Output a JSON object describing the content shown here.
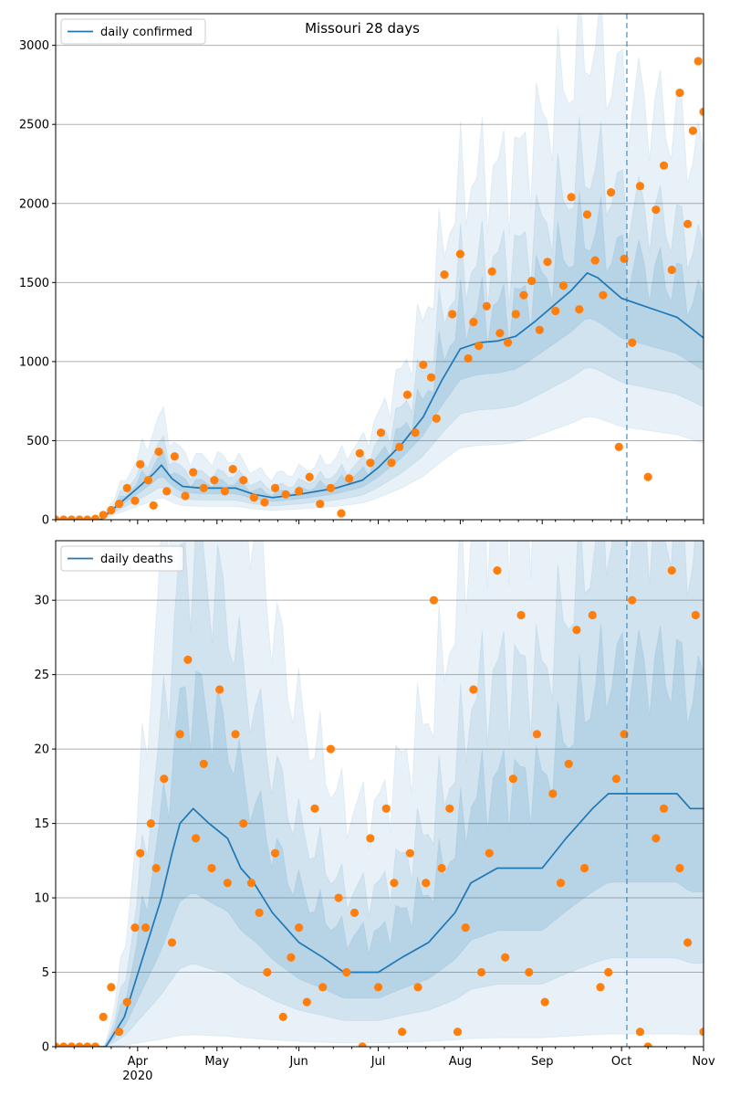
{
  "figure": {
    "title": "Missouri 28 days"
  },
  "chart_data": [
    {
      "type": "line",
      "title": "Missouri 28 days",
      "legend": [
        "daily confirmed"
      ],
      "legend_position": "top-left",
      "x_axis": {
        "range": [
          "2020-03-01",
          "2020-11-01"
        ],
        "tick_labels": [
          "Apr\n2020",
          "May",
          "Jun",
          "Jul",
          "Aug",
          "Sep",
          "Oct",
          "Nov"
        ]
      },
      "ylim": [
        0,
        3200
      ],
      "y_ticks": [
        0,
        500,
        1000,
        1500,
        2000,
        2500,
        3000
      ],
      "grid": "horizontal",
      "vertical_marker_date": "2020-10-03",
      "series": [
        {
          "name": "daily confirmed",
          "kind": "line",
          "color": "#1f77b4",
          "points": [
            [
              "2020-03-01",
              0
            ],
            [
              "2020-03-18",
              0
            ],
            [
              "2020-03-25",
              100
            ],
            [
              "2020-04-01",
              200
            ],
            [
              "2020-04-07",
              290
            ],
            [
              "2020-04-10",
              345
            ],
            [
              "2020-04-14",
              260
            ],
            [
              "2020-04-18",
              210
            ],
            [
              "2020-04-25",
              200
            ],
            [
              "2020-05-01",
              200
            ],
            [
              "2020-05-08",
              200
            ],
            [
              "2020-05-15",
              160
            ],
            [
              "2020-05-22",
              140
            ],
            [
              "2020-06-01",
              160
            ],
            [
              "2020-06-15",
              200
            ],
            [
              "2020-06-25",
              250
            ],
            [
              "2020-07-01",
              330
            ],
            [
              "2020-07-10",
              480
            ],
            [
              "2020-07-18",
              650
            ],
            [
              "2020-07-25",
              880
            ],
            [
              "2020-08-01",
              1080
            ],
            [
              "2020-08-08",
              1120
            ],
            [
              "2020-08-15",
              1130
            ],
            [
              "2020-08-22",
              1160
            ],
            [
              "2020-08-29",
              1250
            ],
            [
              "2020-09-05",
              1350
            ],
            [
              "2020-09-12",
              1450
            ],
            [
              "2020-09-18",
              1560
            ],
            [
              "2020-09-22",
              1530
            ],
            [
              "2020-10-01",
              1400
            ],
            [
              "2020-10-08",
              1360
            ],
            [
              "2020-10-15",
              1320
            ],
            [
              "2020-10-22",
              1280
            ],
            [
              "2020-11-01",
              1150
            ]
          ]
        },
        {
          "name": "",
          "kind": "observations",
          "color": "#ff7f0e",
          "points": [
            [
              "2020-03-01",
              0
            ],
            [
              "2020-03-04",
              0
            ],
            [
              "2020-03-07",
              0
            ],
            [
              "2020-03-10",
              0
            ],
            [
              "2020-03-13",
              0
            ],
            [
              "2020-03-16",
              5
            ],
            [
              "2020-03-19",
              30
            ],
            [
              "2020-03-22",
              60
            ],
            [
              "2020-03-25",
              100
            ],
            [
              "2020-03-28",
              200
            ],
            [
              "2020-03-31",
              120
            ],
            [
              "2020-04-02",
              350
            ],
            [
              "2020-04-05",
              250
            ],
            [
              "2020-04-07",
              90
            ],
            [
              "2020-04-09",
              430
            ],
            [
              "2020-04-12",
              180
            ],
            [
              "2020-04-15",
              400
            ],
            [
              "2020-04-19",
              150
            ],
            [
              "2020-04-22",
              300
            ],
            [
              "2020-04-26",
              200
            ],
            [
              "2020-04-30",
              250
            ],
            [
              "2020-05-04",
              180
            ],
            [
              "2020-05-07",
              320
            ],
            [
              "2020-05-11",
              250
            ],
            [
              "2020-05-15",
              140
            ],
            [
              "2020-05-19",
              110
            ],
            [
              "2020-05-23",
              200
            ],
            [
              "2020-05-27",
              160
            ],
            [
              "2020-06-01",
              180
            ],
            [
              "2020-06-05",
              270
            ],
            [
              "2020-06-09",
              100
            ],
            [
              "2020-06-13",
              200
            ],
            [
              "2020-06-17",
              40
            ],
            [
              "2020-06-20",
              260
            ],
            [
              "2020-06-24",
              420
            ],
            [
              "2020-06-28",
              360
            ],
            [
              "2020-07-02",
              550
            ],
            [
              "2020-07-06",
              360
            ],
            [
              "2020-07-09",
              460
            ],
            [
              "2020-07-12",
              790
            ],
            [
              "2020-07-15",
              550
            ],
            [
              "2020-07-18",
              980
            ],
            [
              "2020-07-21",
              900
            ],
            [
              "2020-07-23",
              640
            ],
            [
              "2020-07-26",
              1550
            ],
            [
              "2020-07-29",
              1300
            ],
            [
              "2020-08-01",
              1680
            ],
            [
              "2020-08-04",
              1020
            ],
            [
              "2020-08-06",
              1250
            ],
            [
              "2020-08-08",
              1100
            ],
            [
              "2020-08-11",
              1350
            ],
            [
              "2020-08-13",
              1570
            ],
            [
              "2020-08-16",
              1180
            ],
            [
              "2020-08-19",
              1120
            ],
            [
              "2020-08-22",
              1300
            ],
            [
              "2020-08-25",
              1420
            ],
            [
              "2020-08-28",
              1510
            ],
            [
              "2020-08-31",
              1200
            ],
            [
              "2020-09-03",
              1630
            ],
            [
              "2020-09-06",
              1320
            ],
            [
              "2020-09-09",
              1480
            ],
            [
              "2020-09-12",
              2040
            ],
            [
              "2020-09-15",
              1330
            ],
            [
              "2020-09-18",
              1930
            ],
            [
              "2020-09-21",
              1640
            ],
            [
              "2020-09-24",
              1420
            ],
            [
              "2020-09-27",
              2070
            ],
            [
              "2020-09-30",
              460
            ],
            [
              "2020-10-02",
              1650
            ],
            [
              "2020-10-05",
              1120
            ],
            [
              "2020-10-08",
              2110
            ],
            [
              "2020-10-11",
              270
            ],
            [
              "2020-10-14",
              1960
            ],
            [
              "2020-10-17",
              2240
            ],
            [
              "2020-10-20",
              1580
            ],
            [
              "2020-10-23",
              2700
            ],
            [
              "2020-10-26",
              1870
            ],
            [
              "2020-10-28",
              2460
            ],
            [
              "2020-10-30",
              2900
            ],
            [
              "2020-11-01",
              2580
            ]
          ]
        }
      ]
    },
    {
      "type": "line",
      "title": "",
      "legend": [
        "daily deaths"
      ],
      "legend_position": "top-left",
      "x_axis": {
        "range": [
          "2020-03-01",
          "2020-11-01"
        ],
        "tick_labels": [
          "Apr\n2020",
          "May",
          "Jun",
          "Jul",
          "Aug",
          "Sep",
          "Oct",
          "Nov"
        ]
      },
      "ylim": [
        0,
        34
      ],
      "y_ticks": [
        0,
        5,
        10,
        15,
        20,
        25,
        30
      ],
      "grid": "horizontal",
      "vertical_marker_date": "2020-10-03",
      "series": [
        {
          "name": "daily deaths",
          "kind": "line",
          "color": "#1f77b4",
          "points": [
            [
              "2020-03-01",
              0
            ],
            [
              "2020-03-20",
              0
            ],
            [
              "2020-03-27",
              2
            ],
            [
              "2020-04-03",
              6
            ],
            [
              "2020-04-10",
              10
            ],
            [
              "2020-04-14",
              13
            ],
            [
              "2020-04-17",
              15
            ],
            [
              "2020-04-22",
              16
            ],
            [
              "2020-04-28",
              15
            ],
            [
              "2020-05-05",
              14
            ],
            [
              "2020-05-10",
              12
            ],
            [
              "2020-05-15",
              11
            ],
            [
              "2020-05-22",
              9
            ],
            [
              "2020-06-01",
              7
            ],
            [
              "2020-06-10",
              6
            ],
            [
              "2020-06-18",
              5
            ],
            [
              "2020-07-01",
              5
            ],
            [
              "2020-07-10",
              6
            ],
            [
              "2020-07-20",
              7
            ],
            [
              "2020-07-30",
              9
            ],
            [
              "2020-08-05",
              11
            ],
            [
              "2020-08-15",
              12
            ],
            [
              "2020-08-25",
              12
            ],
            [
              "2020-09-01",
              12
            ],
            [
              "2020-09-10",
              14
            ],
            [
              "2020-09-20",
              16
            ],
            [
              "2020-09-26",
              17
            ],
            [
              "2020-10-01",
              17
            ],
            [
              "2020-10-08",
              17
            ],
            [
              "2020-10-15",
              17
            ],
            [
              "2020-10-22",
              17
            ],
            [
              "2020-10-27",
              16
            ],
            [
              "2020-11-01",
              16
            ]
          ]
        },
        {
          "name": "",
          "kind": "observations",
          "color": "#ff7f0e",
          "points": [
            [
              "2020-03-01",
              0
            ],
            [
              "2020-03-04",
              0
            ],
            [
              "2020-03-07",
              0
            ],
            [
              "2020-03-10",
              0
            ],
            [
              "2020-03-13",
              0
            ],
            [
              "2020-03-16",
              0
            ],
            [
              "2020-03-19",
              2
            ],
            [
              "2020-03-22",
              4
            ],
            [
              "2020-03-25",
              1
            ],
            [
              "2020-03-28",
              3
            ],
            [
              "2020-03-31",
              8
            ],
            [
              "2020-04-02",
              13
            ],
            [
              "2020-04-04",
              8
            ],
            [
              "2020-04-06",
              15
            ],
            [
              "2020-04-08",
              12
            ],
            [
              "2020-04-11",
              18
            ],
            [
              "2020-04-14",
              7
            ],
            [
              "2020-04-17",
              21
            ],
            [
              "2020-04-20",
              26
            ],
            [
              "2020-04-23",
              14
            ],
            [
              "2020-04-26",
              19
            ],
            [
              "2020-04-29",
              12
            ],
            [
              "2020-05-02",
              24
            ],
            [
              "2020-05-05",
              11
            ],
            [
              "2020-05-08",
              21
            ],
            [
              "2020-05-11",
              15
            ],
            [
              "2020-05-14",
              11
            ],
            [
              "2020-05-17",
              9
            ],
            [
              "2020-05-20",
              5
            ],
            [
              "2020-05-23",
              13
            ],
            [
              "2020-05-26",
              2
            ],
            [
              "2020-05-29",
              6
            ],
            [
              "2020-06-01",
              8
            ],
            [
              "2020-06-04",
              3
            ],
            [
              "2020-06-07",
              16
            ],
            [
              "2020-06-10",
              4
            ],
            [
              "2020-06-13",
              20
            ],
            [
              "2020-06-16",
              10
            ],
            [
              "2020-06-19",
              5
            ],
            [
              "2020-06-22",
              9
            ],
            [
              "2020-06-25",
              0
            ],
            [
              "2020-06-28",
              14
            ],
            [
              "2020-07-01",
              4
            ],
            [
              "2020-07-04",
              16
            ],
            [
              "2020-07-07",
              11
            ],
            [
              "2020-07-10",
              1
            ],
            [
              "2020-07-13",
              13
            ],
            [
              "2020-07-16",
              4
            ],
            [
              "2020-07-19",
              11
            ],
            [
              "2020-07-22",
              30
            ],
            [
              "2020-07-25",
              12
            ],
            [
              "2020-07-28",
              16
            ],
            [
              "2020-07-31",
              1
            ],
            [
              "2020-08-03",
              8
            ],
            [
              "2020-08-06",
              24
            ],
            [
              "2020-08-09",
              5
            ],
            [
              "2020-08-12",
              13
            ],
            [
              "2020-08-15",
              32
            ],
            [
              "2020-08-18",
              6
            ],
            [
              "2020-08-21",
              18
            ],
            [
              "2020-08-24",
              29
            ],
            [
              "2020-08-27",
              5
            ],
            [
              "2020-08-30",
              21
            ],
            [
              "2020-09-02",
              3
            ],
            [
              "2020-09-05",
              17
            ],
            [
              "2020-09-08",
              11
            ],
            [
              "2020-09-11",
              19
            ],
            [
              "2020-09-14",
              28
            ],
            [
              "2020-09-17",
              12
            ],
            [
              "2020-09-20",
              29
            ],
            [
              "2020-09-23",
              4
            ],
            [
              "2020-09-26",
              5
            ],
            [
              "2020-09-29",
              18
            ],
            [
              "2020-10-02",
              21
            ],
            [
              "2020-10-05",
              30
            ],
            [
              "2020-10-08",
              1
            ],
            [
              "2020-10-11",
              0
            ],
            [
              "2020-10-14",
              14
            ],
            [
              "2020-10-17",
              16
            ],
            [
              "2020-10-20",
              32
            ],
            [
              "2020-10-23",
              12
            ],
            [
              "2020-10-26",
              7
            ],
            [
              "2020-10-29",
              29
            ],
            [
              "2020-11-01",
              1
            ]
          ]
        }
      ]
    }
  ]
}
